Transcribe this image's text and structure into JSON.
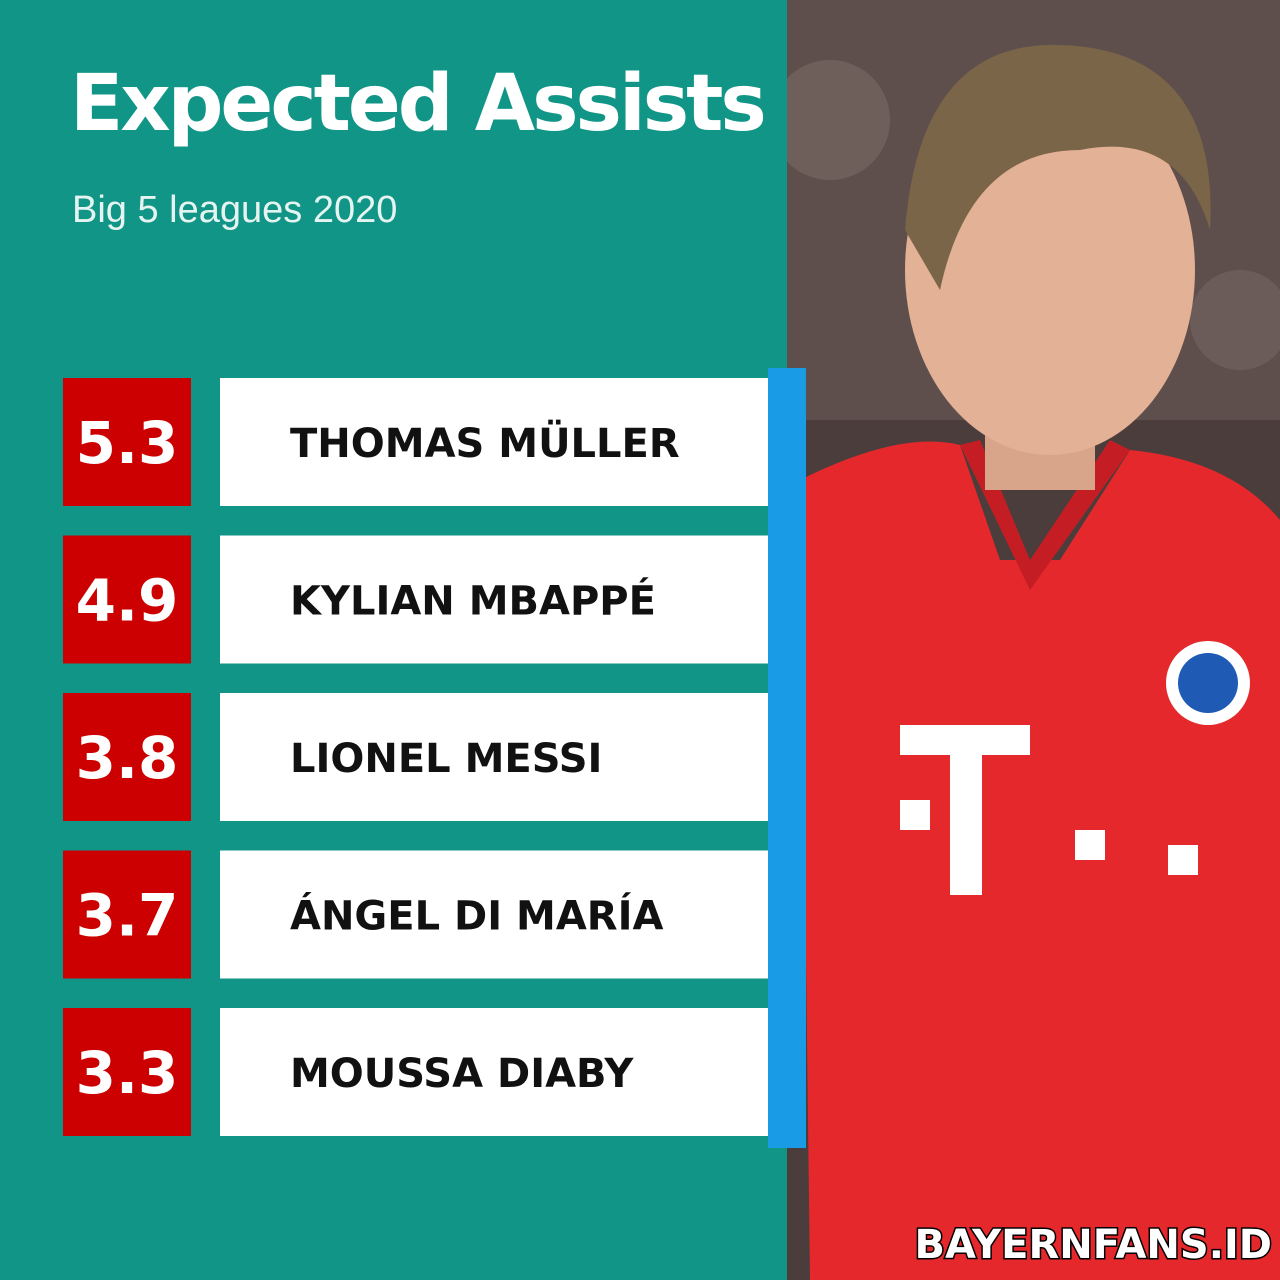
{
  "header": {
    "title": "Expected Assists",
    "subtitle": "Big 5 leagues 2020"
  },
  "rows": [
    {
      "value": 5.3,
      "name": "THOMAS MÜLLER"
    },
    {
      "value": 4.9,
      "name": "KYLIAN MBAPPÉ"
    },
    {
      "value": 3.8,
      "name": "LIONEL MESSI"
    },
    {
      "value": 3.7,
      "name": "ÁNGEL DI MARÍA"
    },
    {
      "value": 3.3,
      "name": "MOUSSA DIABY"
    }
  ],
  "watermark": "BAYERNFANS.ID"
}
